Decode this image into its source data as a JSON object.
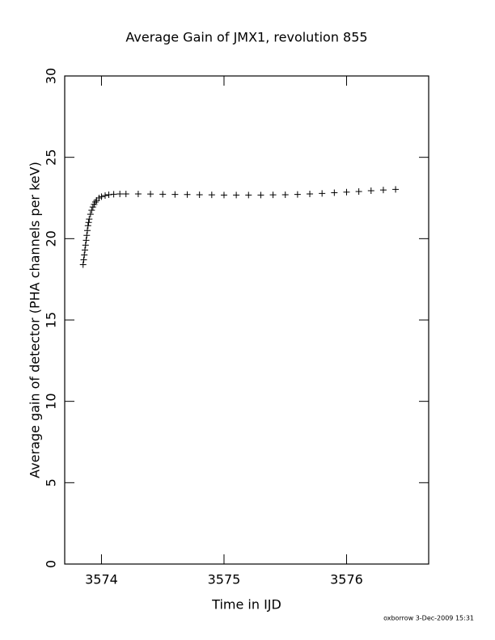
{
  "chart_data": {
    "type": "scatter",
    "title": "Average Gain of JMX1, revolution 855",
    "x_label": "Time in IJD",
    "y_label": "Average gain of detector (PHA channels per keV)",
    "footer": "oxborrow  3-Dec-2009 15:31",
    "marker": "plus",
    "color": "#000000",
    "xlim": [
      3573.7,
      3576.67
    ],
    "ylim": [
      0,
      30
    ],
    "xticks": [
      3574,
      3575,
      3576
    ],
    "yticks": [
      0,
      5,
      10,
      15,
      20,
      25,
      30
    ],
    "x": [
      3573.85,
      3573.855,
      3573.86,
      3573.865,
      3573.87,
      3573.875,
      3573.88,
      3573.885,
      3573.89,
      3573.895,
      3573.9,
      3573.91,
      3573.92,
      3573.93,
      3573.94,
      3573.95,
      3573.96,
      3573.98,
      3574.0,
      3574.03,
      3574.06,
      3574.1,
      3574.15,
      3574.2,
      3574.3,
      3574.4,
      3574.5,
      3574.6,
      3574.7,
      3574.8,
      3574.9,
      3575.0,
      3575.1,
      3575.2,
      3575.3,
      3575.4,
      3575.5,
      3575.6,
      3575.7,
      3575.8,
      3575.9,
      3576.0,
      3576.1,
      3576.2,
      3576.3,
      3576.4
    ],
    "y": [
      18.4,
      18.7,
      19.0,
      19.3,
      19.6,
      19.9,
      20.2,
      20.5,
      20.8,
      21.0,
      21.2,
      21.5,
      21.75,
      21.95,
      22.1,
      22.25,
      22.35,
      22.5,
      22.58,
      22.65,
      22.7,
      22.73,
      22.75,
      22.75,
      22.75,
      22.74,
      22.73,
      22.72,
      22.71,
      22.7,
      22.69,
      22.68,
      22.68,
      22.68,
      22.68,
      22.69,
      22.7,
      22.72,
      22.75,
      22.78,
      22.82,
      22.86,
      22.9,
      22.95,
      22.99,
      23.03
    ]
  }
}
